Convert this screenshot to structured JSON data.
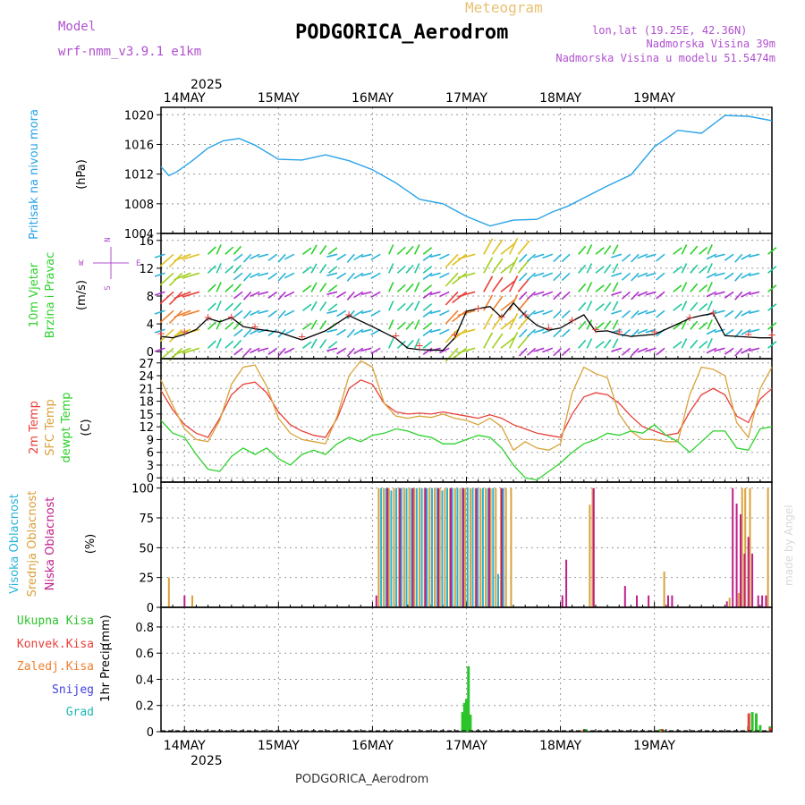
{
  "header": {
    "model_label": "Model",
    "model_name": "wrf-nmm_v3.9.1  e1km",
    "product": "Meteogram",
    "station": "PODGORICA_Aerodrom",
    "lonlat": "lon,lat (19.25E, 42.36N)",
    "elevation": "Nadmorska Visina 39m",
    "model_elevation": "Nadmorska Visina u modelu 51.5474m",
    "footer_station": "PODGORICA_Aerodrom",
    "credit": "made by Angel"
  },
  "colors": {
    "pressure": "#29a3e8",
    "temp2m": "#e8403a",
    "sfc_temp": "#d9a23a",
    "dewpoint": "#2bd12b",
    "high_cloud": "#29b4d9",
    "mid_cloud": "#d9a23a",
    "low_cloud": "#c0208c",
    "total_precip": "#2bc42b",
    "conv_precip": "#e8403a",
    "frozen_precip": "#f08030",
    "snow": "#4040e0",
    "hail": "#20b8b8",
    "title": "#000000",
    "meta": "#b050d0"
  },
  "time_axis": {
    "year": "2025",
    "days": [
      "14MAY",
      "15MAY",
      "16MAY",
      "17MAY",
      "18MAY",
      "19MAY"
    ],
    "start_hour": 0,
    "end_hour": 156
  },
  "chart_data": [
    {
      "type": "line",
      "panel": "pressure",
      "ylabel": "Pritisak na nivou mora",
      "unit": "(hPa)",
      "ylim": [
        1004,
        1021
      ],
      "yticks": [
        1004,
        1008,
        1012,
        1016,
        1020
      ],
      "grid": true,
      "x": [
        0,
        2,
        4,
        8,
        12,
        16,
        20,
        24,
        30,
        36,
        42,
        48,
        54,
        60,
        66,
        72,
        78,
        84,
        90,
        96,
        100,
        104,
        108,
        114,
        120,
        126,
        132,
        138,
        144,
        150,
        156
      ],
      "values": [
        1013.0,
        1011.8,
        1012.3,
        1013.8,
        1015.5,
        1016.5,
        1016.8,
        1015.9,
        1014.0,
        1013.9,
        1014.6,
        1013.8,
        1012.6,
        1010.8,
        1008.6,
        1008.0,
        1006.3,
        1005.0,
        1005.8,
        1005.9,
        1006.9,
        1007.7,
        1008.8,
        1010.4,
        1011.9,
        1015.7,
        1017.9,
        1017.5,
        1019.9,
        1019.8,
        1019.2
      ]
    },
    {
      "type": "line",
      "panel": "wind",
      "ylabel": "10m Vjetar",
      "ylabel2": "Brzina i Pravac",
      "unit": "(m/s)",
      "compass": "N",
      "compass_w": "W",
      "compass_e": "E",
      "compass_s": "S",
      "ylim": [
        -1,
        17
      ],
      "yticks": [
        0,
        4,
        8,
        12,
        16
      ],
      "grid": true,
      "series": [
        {
          "x": [
            0,
            3,
            6,
            9,
            12,
            15,
            18,
            21,
            24,
            30,
            36,
            42,
            48,
            54,
            60,
            63,
            66,
            72,
            75,
            78,
            81,
            84,
            87,
            90,
            93,
            96,
            99,
            102,
            105,
            108,
            111,
            114,
            117,
            120,
            126,
            132,
            135,
            138,
            141,
            144,
            150,
            153,
            156
          ],
          "values": [
            2.2,
            2.0,
            2.5,
            3.2,
            4.8,
            4.3,
            4.9,
            3.6,
            3.3,
            2.8,
            1.7,
            3.0,
            5.2,
            3.6,
            1.9,
            0.5,
            0.3,
            0.2,
            2.0,
            5.8,
            6.2,
            6.5,
            4.9,
            7.0,
            5.2,
            3.8,
            3.1,
            3.4,
            4.4,
            5.3,
            2.9,
            3.0,
            2.5,
            2.2,
            2.5,
            4.0,
            4.8,
            5.2,
            5.5,
            2.3,
            2.1,
            2.0,
            2.0
          ]
        }
      ]
    },
    {
      "type": "line",
      "panel": "temperature",
      "unit": "(C)",
      "ylim": [
        -1,
        28
      ],
      "yticks": [
        0,
        3,
        6,
        9,
        12,
        15,
        18,
        21,
        24,
        27
      ],
      "grid": true,
      "x": [
        0,
        3,
        6,
        9,
        12,
        15,
        18,
        21,
        24,
        27,
        30,
        33,
        36,
        39,
        42,
        45,
        48,
        51,
        54,
        57,
        60,
        63,
        66,
        69,
        72,
        75,
        78,
        81,
        84,
        87,
        90,
        93,
        96,
        99,
        102,
        105,
        108,
        111,
        114,
        117,
        120,
        123,
        126,
        129,
        132,
        135,
        138,
        141,
        144,
        147,
        150,
        153,
        156
      ],
      "series": [
        {
          "name": "2m Temp",
          "values": [
            20.5,
            16.0,
            12.5,
            10.5,
            9.5,
            14.0,
            19.5,
            22.0,
            22.5,
            20.0,
            15.5,
            12.5,
            11.0,
            10.0,
            9.5,
            14.0,
            21.0,
            23.0,
            22.0,
            17.5,
            15.5,
            15.0,
            15.2,
            15.0,
            15.5,
            15.0,
            14.5,
            14.0,
            14.8,
            14.0,
            12.5,
            11.5,
            10.5,
            10.0,
            9.5,
            15.0,
            19.0,
            20.0,
            19.5,
            17.5,
            14.5,
            12.0,
            11.0,
            10.0,
            10.5,
            15.5,
            19.5,
            21.0,
            19.5,
            14.5,
            13.0,
            18.5,
            21.0
          ]
        },
        {
          "name": "SFC Temp",
          "values": [
            23.0,
            17.0,
            11.5,
            9.0,
            8.5,
            13.5,
            22.0,
            26.0,
            26.5,
            21.5,
            14.0,
            10.5,
            9.0,
            8.5,
            8.0,
            14.5,
            24.0,
            27.5,
            26.0,
            17.5,
            14.5,
            14.0,
            14.5,
            14.2,
            15.0,
            14.0,
            13.5,
            12.5,
            14.0,
            12.0,
            6.5,
            8.5,
            7.0,
            6.5,
            8.0,
            20.0,
            26.0,
            24.5,
            23.5,
            15.0,
            11.0,
            9.0,
            9.0,
            8.5,
            8.5,
            19.5,
            26.0,
            25.5,
            24.0,
            13.0,
            9.5,
            21.0,
            26.0
          ]
        },
        {
          "name": "dewpt Temp",
          "values": [
            13.5,
            10.5,
            9.5,
            5.5,
            2.0,
            1.5,
            5.0,
            7.0,
            5.5,
            7.0,
            4.5,
            3.0,
            5.5,
            6.5,
            5.5,
            8.0,
            9.5,
            8.5,
            10.0,
            10.5,
            11.5,
            11.0,
            10.0,
            9.5,
            8.0,
            8.0,
            9.0,
            10.0,
            9.5,
            7.0,
            3.0,
            0.0,
            -0.5,
            1.5,
            3.5,
            6.0,
            8.0,
            9.0,
            10.5,
            10.0,
            11.0,
            10.5,
            12.5,
            10.0,
            8.5,
            6.0,
            8.5,
            11.0,
            11.0,
            7.0,
            6.5,
            11.5,
            12.0
          ]
        }
      ]
    },
    {
      "type": "bar",
      "panel": "cloud",
      "unit": "(%)",
      "ylim": [
        0,
        105
      ],
      "yticks": [
        0,
        25,
        50,
        75,
        100
      ],
      "grid": true,
      "series": [
        {
          "name": "Visoka Oblacnost",
          "x": [
            56.2,
            57.5,
            58.8,
            60.1,
            61.4,
            62.7,
            64.0,
            65.3,
            66.6,
            67.9,
            69.2,
            70.5,
            71.8,
            73.1,
            74.4,
            75.7,
            77.0,
            78.3,
            79.6,
            80.9,
            82.2,
            83.5,
            84.8,
            86.1,
            87.4
          ],
          "values": [
            100,
            100,
            98,
            100,
            100,
            100,
            100,
            100,
            100,
            100,
            100,
            100,
            98,
            100,
            100,
            100,
            100,
            100,
            100,
            100,
            100,
            100,
            100,
            28,
            100
          ]
        },
        {
          "name": "Srednja Oblacnost",
          "x": [
            2,
            8,
            55.6,
            56.9,
            58.2,
            59.5,
            60.8,
            62.1,
            63.4,
            64.7,
            66.0,
            67.3,
            68.6,
            69.9,
            71.2,
            72.5,
            73.8,
            75.1,
            76.4,
            77.7,
            79.0,
            80.3,
            81.6,
            82.9,
            84.2,
            85.5,
            86.8,
            88.1,
            89.4,
            109.5,
            110.2,
            128.5,
            145.2,
            147.5,
            148.4,
            149.2,
            150.4,
            155.0
          ],
          "values": [
            25,
            10,
            100,
            100,
            100,
            100,
            100,
            100,
            100,
            100,
            100,
            100,
            100,
            100,
            100,
            100,
            100,
            100,
            100,
            100,
            100,
            100,
            100,
            100,
            100,
            100,
            100,
            100,
            100,
            86,
            100,
            30,
            8,
            12,
            100,
            100,
            100,
            100
          ]
        },
        {
          "name": "Niska Oblacnost",
          "x": [
            6,
            55.0,
            57.8,
            61.0,
            64.3,
            67.5,
            70.8,
            74.0,
            77.2,
            80.5,
            83.8,
            87.0,
            102.5,
            103.5,
            110.5,
            118.5,
            121.5,
            124.5,
            129.5,
            130.5,
            144.5,
            146.0,
            147.0,
            148.0,
            149.0,
            150.0,
            151.0,
            152.5,
            153.5,
            154.5
          ],
          "values": [
            10,
            10,
            100,
            100,
            100,
            100,
            100,
            100,
            100,
            100,
            100,
            100,
            10,
            40,
            100,
            18,
            10,
            10,
            10,
            10,
            5,
            100,
            87,
            78,
            45,
            59,
            45,
            10,
            10,
            10
          ]
        }
      ]
    },
    {
      "type": "bar",
      "panel": "precip",
      "ylabel": "1hr Precip",
      "unit": "(mm)",
      "ylim": [
        0,
        0.95
      ],
      "yticks": [
        0,
        0.2,
        0.4,
        0.6,
        0.8
      ],
      "ytick_labels": [
        "0",
        "0.2",
        "0.4",
        "0.6",
        "0.8"
      ],
      "grid": true,
      "legend": [
        "Ukupna Kisa",
        "Konvek.Kisa",
        "Zaledj.Kisa",
        "Snijeg",
        "Grad"
      ],
      "series": [
        {
          "name": "Ukupna Kisa",
          "x": [
            77.0,
            77.5,
            78.0,
            78.5,
            79.0,
            107.5,
            108.5,
            127.5,
            128.5,
            150.0,
            151.0,
            152.0,
            153.0,
            155.5
          ],
          "values": [
            0.15,
            0.22,
            0.25,
            0.5,
            0.13,
            0.01,
            0.02,
            0.02,
            0.01,
            0.04,
            0.15,
            0.14,
            0.05,
            0.04
          ]
        },
        {
          "name": "Konvek.Kisa",
          "x": [
            107.6,
            128.0,
            150.1,
            155.6
          ],
          "values": [
            0.01,
            0.02,
            0.14,
            0.03
          ]
        }
      ]
    }
  ],
  "panel_labels": {
    "temperature": [
      "2m Temp",
      "SFC Temp",
      "dewpt Temp"
    ],
    "cloud": [
      "Visoka Oblacnost",
      "Srednja Oblacnost",
      "Niska Oblacnost"
    ]
  }
}
